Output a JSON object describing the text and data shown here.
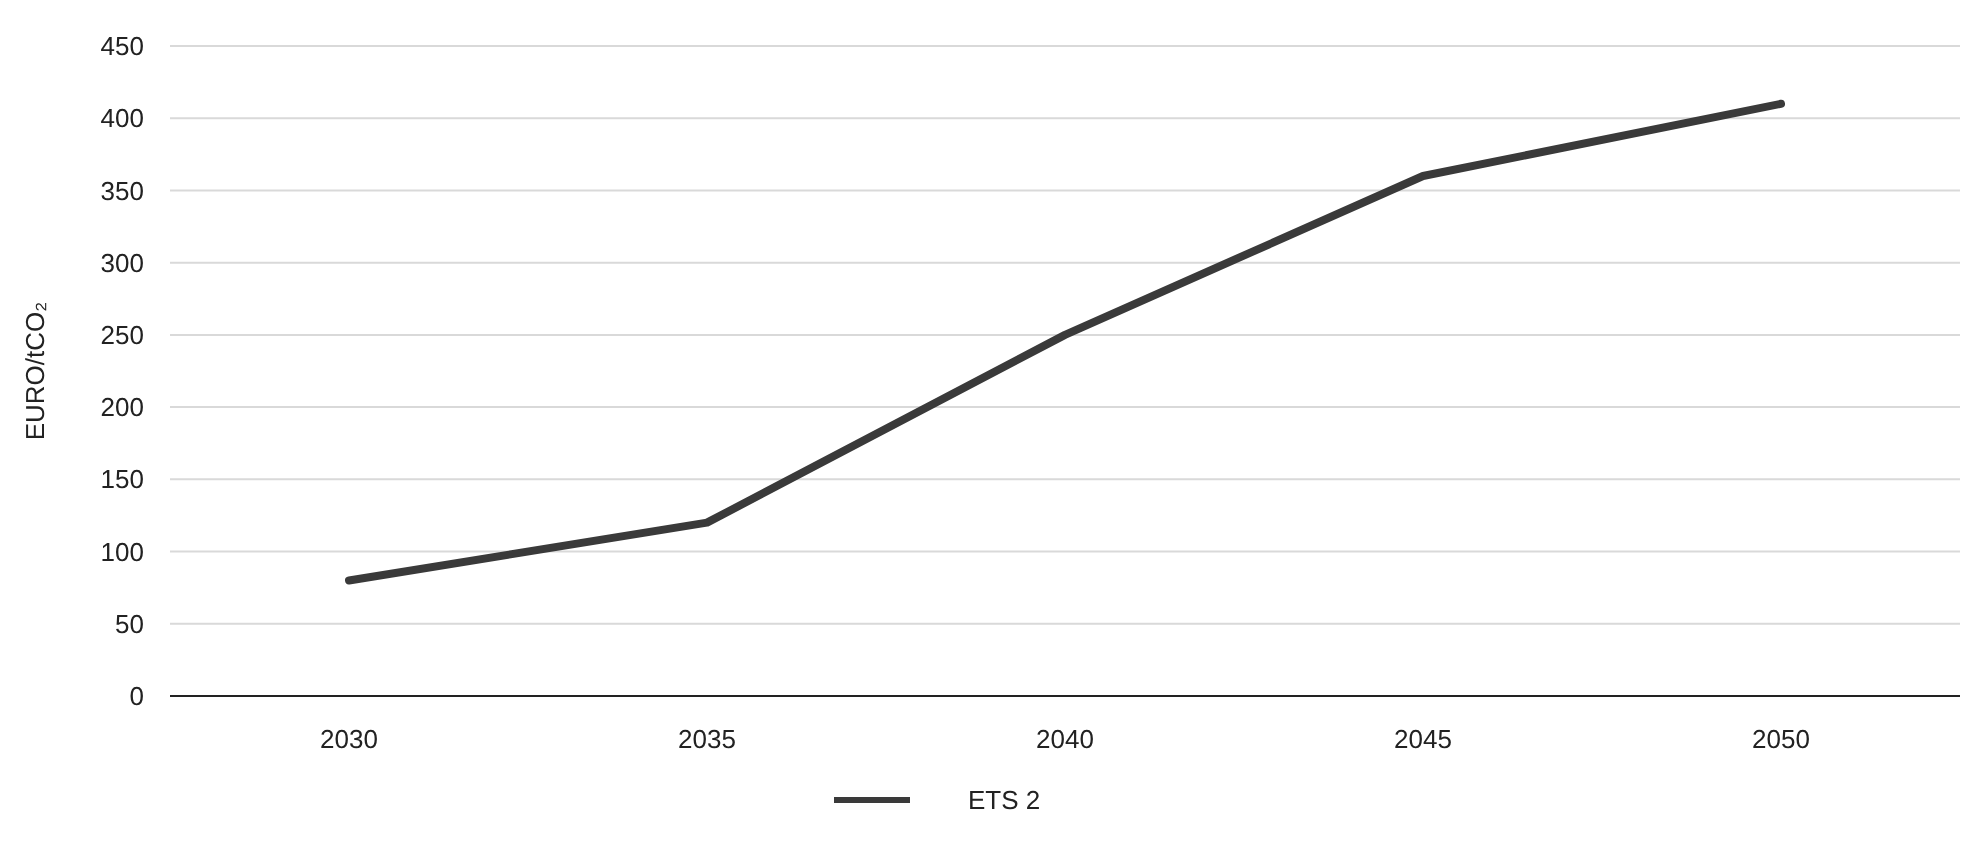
{
  "chart_data": {
    "type": "line",
    "ylabel": "EURO/tCO₂",
    "categories": [
      "2030",
      "2035",
      "2040",
      "2045",
      "2050"
    ],
    "series": [
      {
        "name": "ETS 2",
        "color": "#3a3a3a",
        "values": [
          80,
          120,
          250,
          360,
          410
        ]
      }
    ],
    "ylim": [
      0,
      450
    ],
    "yticks": [
      0,
      50,
      100,
      150,
      200,
      250,
      300,
      350,
      400,
      450
    ],
    "grid": "y",
    "legend": "bottom",
    "marker": "none",
    "line_style": "solid"
  }
}
